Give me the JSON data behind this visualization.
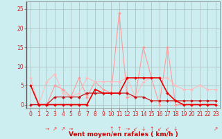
{
  "bg_color": "#cceef0",
  "grid_color": "#aabbbb",
  "xlabel": "Vent moyen/en rafales ( km/h )",
  "ylim": [
    -1,
    27
  ],
  "xlim": [
    -0.5,
    23.5
  ],
  "yticks": [
    0,
    5,
    10,
    15,
    20,
    25
  ],
  "xticks": [
    0,
    1,
    2,
    3,
    4,
    5,
    6,
    7,
    8,
    9,
    10,
    11,
    12,
    13,
    14,
    15,
    16,
    17,
    18,
    19,
    20,
    21,
    22,
    23
  ],
  "series": [
    {
      "x": [
        0,
        1,
        2,
        3,
        4,
        5,
        6,
        7,
        8,
        9,
        10,
        11,
        12,
        13,
        14,
        15,
        16,
        17,
        18,
        19,
        20,
        21,
        22,
        23
      ],
      "y": [
        0,
        0,
        0,
        5,
        4,
        2,
        7,
        2,
        6,
        4,
        3,
        24,
        2,
        2,
        15,
        7,
        0,
        15,
        0,
        0,
        0,
        0,
        0,
        0
      ],
      "color": "#ff9999",
      "lw": 0.8,
      "marker": "D",
      "ms": 2.0
    },
    {
      "x": [
        0,
        1,
        2,
        3,
        4,
        5,
        6,
        7,
        8,
        9,
        10,
        11,
        12,
        13,
        14,
        15,
        16,
        17,
        18,
        19,
        20,
        21,
        22,
        23
      ],
      "y": [
        7,
        0,
        6,
        8,
        3,
        2,
        3,
        7,
        6,
        6,
        6,
        6,
        7,
        2,
        6,
        7,
        7,
        7,
        5,
        4,
        4,
        5,
        4,
        4
      ],
      "color": "#ffbbbb",
      "lw": 0.8,
      "marker": "D",
      "ms": 2.0
    },
    {
      "x": [
        0,
        1,
        2,
        3,
        4,
        5,
        6,
        7,
        8,
        9,
        10,
        11,
        12,
        13,
        14,
        15,
        16,
        17,
        18,
        19,
        20,
        21,
        22,
        23
      ],
      "y": [
        0,
        0,
        0,
        2,
        2,
        2,
        2,
        3,
        3,
        3,
        3,
        3,
        3,
        2,
        2,
        1,
        1,
        1,
        1,
        1,
        1,
        1,
        1,
        1
      ],
      "color": "#cc1111",
      "lw": 0.9,
      "marker": "D",
      "ms": 2.0
    },
    {
      "x": [
        0,
        1,
        2,
        3,
        4,
        5,
        6,
        7,
        8,
        9,
        10,
        11,
        12,
        13,
        14,
        15,
        16,
        17,
        18,
        19,
        20,
        21,
        22,
        23
      ],
      "y": [
        5,
        0,
        0,
        0,
        0,
        0,
        0,
        0,
        4,
        3,
        3,
        3,
        7,
        7,
        7,
        7,
        7,
        3,
        1,
        0,
        0,
        0,
        0,
        0
      ],
      "color": "#ee0000",
      "lw": 1.2,
      "marker": "D",
      "ms": 2.0
    }
  ],
  "arrows": [
    {
      "x": 2,
      "text": "→"
    },
    {
      "x": 3,
      "text": "↗"
    },
    {
      "x": 4,
      "text": "↗"
    },
    {
      "x": 5,
      "text": "→"
    },
    {
      "x": 10,
      "text": "↑"
    },
    {
      "x": 11,
      "text": "↑"
    },
    {
      "x": 12,
      "text": "→"
    },
    {
      "x": 13,
      "text": "↙"
    },
    {
      "x": 14,
      "text": "↓"
    },
    {
      "x": 15,
      "text": "↑"
    },
    {
      "x": 16,
      "text": "↙"
    },
    {
      "x": 17,
      "text": "↙"
    },
    {
      "x": 18,
      "text": "↓"
    },
    {
      "x": 23,
      "text": "↗"
    }
  ],
  "arrow_color": "#ff3333",
  "tick_fontsize": 5.5,
  "xlabel_fontsize": 6.5,
  "arrow_fontsize": 5.5
}
